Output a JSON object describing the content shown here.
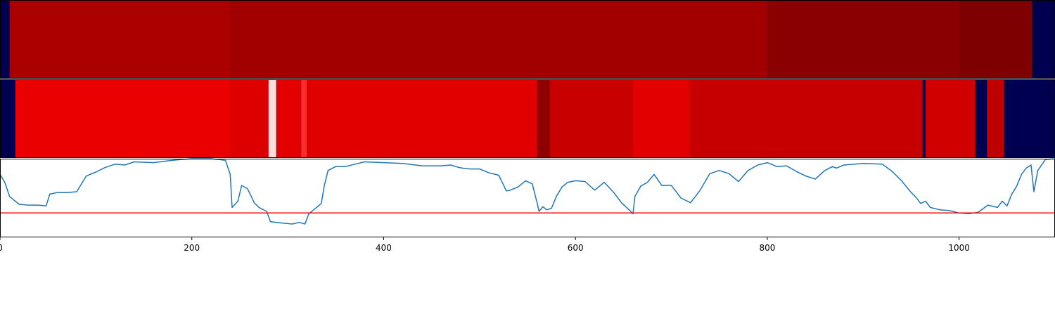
{
  "chart_data": [
    {
      "type": "heatmap",
      "title": "",
      "xlim": [
        0,
        1100
      ],
      "colors": {
        "background": "#000050"
      },
      "segments": [
        {
          "start": 0,
          "end": 10,
          "color": "#000050"
        },
        {
          "start": 10,
          "end": 240,
          "color": "#ab0000"
        },
        {
          "start": 240,
          "end": 800,
          "color": "#a20000"
        },
        {
          "start": 800,
          "end": 1000,
          "color": "#8a0000"
        },
        {
          "start": 1000,
          "end": 1076,
          "color": "#7e0000"
        },
        {
          "start": 1076,
          "end": 1100,
          "color": "#000050"
        }
      ]
    },
    {
      "type": "heatmap",
      "title": "",
      "xlim": [
        0,
        1100
      ],
      "colors": {
        "background": "#000050"
      },
      "segments": [
        {
          "start": 0,
          "end": 16,
          "color": "#000050"
        },
        {
          "start": 16,
          "end": 240,
          "color": "#ea0000"
        },
        {
          "start": 240,
          "end": 280,
          "color": "#de0000"
        },
        {
          "start": 280,
          "end": 288,
          "color": "#ffdcdc"
        },
        {
          "start": 288,
          "end": 314,
          "color": "#e20000"
        },
        {
          "start": 314,
          "end": 320,
          "color": "#ff2a2a"
        },
        {
          "start": 320,
          "end": 560,
          "color": "#e00000"
        },
        {
          "start": 560,
          "end": 573,
          "color": "#8e0000"
        },
        {
          "start": 573,
          "end": 660,
          "color": "#c80000"
        },
        {
          "start": 660,
          "end": 719,
          "color": "#e20000"
        },
        {
          "start": 719,
          "end": 962,
          "color": "#c60000"
        },
        {
          "start": 962,
          "end": 965,
          "color": "#000050"
        },
        {
          "start": 965,
          "end": 1017,
          "color": "#d00000"
        },
        {
          "start": 1017,
          "end": 1029,
          "color": "#000050"
        },
        {
          "start": 1029,
          "end": 1047,
          "color": "#be0000"
        },
        {
          "start": 1047,
          "end": 1100,
          "color": "#000050"
        }
      ]
    },
    {
      "type": "line",
      "title": "",
      "xlabel": "",
      "ylabel": "",
      "xlim": [
        0,
        1100
      ],
      "ylim": [
        0,
        1
      ],
      "grid": false,
      "xticks": [
        0,
        200,
        400,
        600,
        800,
        1000
      ],
      "colors": {
        "line": "#1f77b4",
        "threshold": "#ff0000"
      },
      "threshold": 0.31,
      "series": [
        {
          "name": "signal",
          "x": [
            0,
            5,
            10,
            15,
            20,
            30,
            40,
            48,
            52,
            60,
            70,
            80,
            90,
            100,
            110,
            120,
            130,
            140,
            160,
            180,
            200,
            220,
            235,
            240,
            242,
            245,
            248,
            252,
            258,
            262,
            265,
            270,
            278,
            282,
            288,
            295,
            305,
            312,
            318,
            322,
            330,
            335,
            338,
            342,
            350,
            360,
            380,
            400,
            420,
            440,
            460,
            470,
            478,
            482,
            490,
            500,
            510,
            520,
            528,
            532,
            540,
            548,
            555,
            560,
            562,
            566,
            570,
            575,
            580,
            586,
            592,
            600,
            610,
            620,
            630,
            640,
            648,
            655,
            660,
            662,
            668,
            675,
            682,
            690,
            700,
            710,
            720,
            730,
            740,
            750,
            760,
            770,
            780,
            790,
            800,
            810,
            820,
            830,
            840,
            850,
            860,
            868,
            872,
            880,
            900,
            920,
            930,
            940,
            950,
            955,
            960,
            965,
            970,
            980,
            990,
            1000,
            1010,
            1020,
            1030,
            1040,
            1045,
            1050,
            1055,
            1060,
            1065,
            1070,
            1075,
            1078,
            1082,
            1090,
            1100
          ],
          "values": [
            0.8,
            0.7,
            0.52,
            0.47,
            0.42,
            0.41,
            0.41,
            0.4,
            0.55,
            0.57,
            0.57,
            0.58,
            0.78,
            0.83,
            0.89,
            0.93,
            0.92,
            0.96,
            0.95,
            0.98,
            1.0,
            1.0,
            0.98,
            0.8,
            0.38,
            0.42,
            0.46,
            0.66,
            0.62,
            0.52,
            0.44,
            0.38,
            0.33,
            0.2,
            0.19,
            0.18,
            0.17,
            0.19,
            0.17,
            0.3,
            0.38,
            0.43,
            0.65,
            0.85,
            0.9,
            0.9,
            0.96,
            0.95,
            0.94,
            0.91,
            0.91,
            0.92,
            0.89,
            0.88,
            0.87,
            0.87,
            0.82,
            0.79,
            0.59,
            0.6,
            0.64,
            0.72,
            0.68,
            0.44,
            0.33,
            0.39,
            0.35,
            0.37,
            0.52,
            0.64,
            0.7,
            0.72,
            0.71,
            0.6,
            0.7,
            0.57,
            0.44,
            0.36,
            0.3,
            0.52,
            0.65,
            0.7,
            0.8,
            0.66,
            0.66,
            0.5,
            0.44,
            0.6,
            0.81,
            0.85,
            0.81,
            0.71,
            0.85,
            0.92,
            0.95,
            0.9,
            0.91,
            0.84,
            0.78,
            0.74,
            0.85,
            0.9,
            0.88,
            0.92,
            0.94,
            0.93,
            0.84,
            0.72,
            0.57,
            0.51,
            0.43,
            0.46,
            0.38,
            0.35,
            0.34,
            0.31,
            0.3,
            0.32,
            0.41,
            0.38,
            0.46,
            0.4,
            0.55,
            0.65,
            0.8,
            0.88,
            0.92,
            0.58,
            0.85,
            0.99,
            1.0
          ]
        }
      ]
    }
  ]
}
